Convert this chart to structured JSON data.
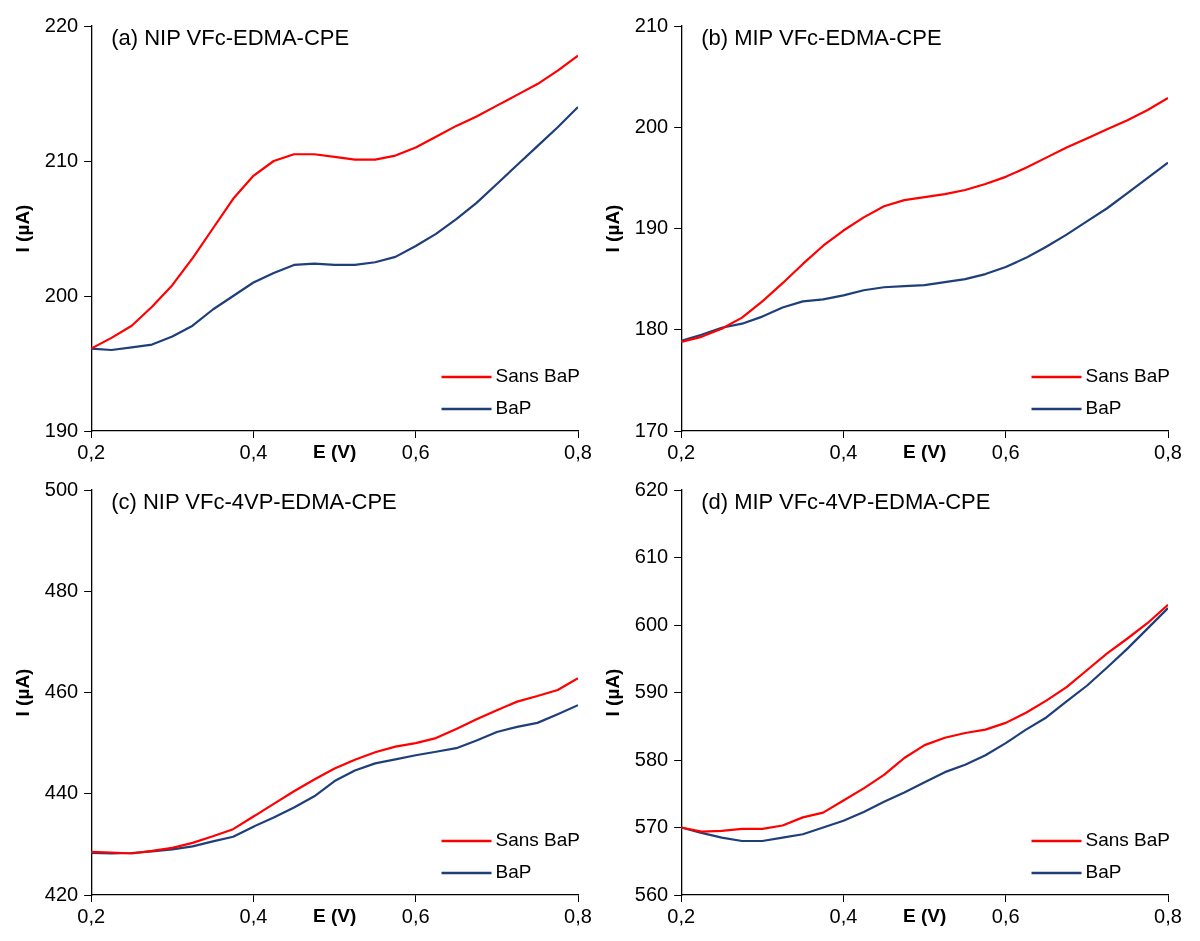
{
  "chart_data": [
    {
      "type": "line",
      "title": "(a) NIP VFc-EDMA-CPE",
      "xlabel": "E (V)",
      "ylabel": "I (µA)",
      "legend": "bottom right",
      "grid": false,
      "xlim": [
        0.2,
        0.8
      ],
      "xticks": [
        {
          "value": 0.2,
          "label": "0,2"
        },
        {
          "value": 0.4,
          "label": "0,4"
        },
        {
          "value": 0.6,
          "label": "0,6"
        },
        {
          "value": 0.8,
          "label": "0,8"
        }
      ],
      "ylim": [
        190,
        220
      ],
      "yticks": [
        190,
        200,
        210,
        220
      ],
      "x": [
        0.2,
        0.225,
        0.25,
        0.275,
        0.3,
        0.325,
        0.35,
        0.375,
        0.4,
        0.425,
        0.45,
        0.475,
        0.5,
        0.525,
        0.55,
        0.575,
        0.6,
        0.625,
        0.65,
        0.675,
        0.7,
        0.725,
        0.75,
        0.775,
        0.8
      ],
      "series": [
        {
          "name": "Sans BaP",
          "color": "#ff0000",
          "values": [
            196.1,
            196.9,
            197.8,
            199.2,
            200.8,
            202.8,
            205.0,
            207.2,
            208.9,
            210.0,
            210.5,
            210.5,
            210.3,
            210.1,
            210.1,
            210.4,
            211.0,
            211.8,
            212.6,
            213.3,
            214.1,
            214.9,
            215.7,
            216.7,
            217.8
          ]
        },
        {
          "name": "BaP",
          "color": "#1f3f7a",
          "values": [
            196.1,
            196.0,
            196.2,
            196.4,
            197.0,
            197.8,
            199.0,
            200.0,
            201.0,
            201.7,
            202.3,
            202.4,
            202.3,
            202.3,
            202.5,
            202.9,
            203.7,
            204.6,
            205.7,
            206.9,
            208.3,
            209.7,
            211.1,
            212.5,
            214.0
          ]
        }
      ]
    },
    {
      "type": "line",
      "title": "(b) MIP VFc-EDMA-CPE",
      "xlabel": "E (V)",
      "ylabel": "I (µA)",
      "legend": "bottom right",
      "grid": false,
      "xlim": [
        0.2,
        0.8
      ],
      "xticks": [
        {
          "value": 0.2,
          "label": "0,2"
        },
        {
          "value": 0.4,
          "label": "0,4"
        },
        {
          "value": 0.6,
          "label": "0,6"
        },
        {
          "value": 0.8,
          "label": "0,8"
        }
      ],
      "ylim": [
        170,
        210
      ],
      "yticks": [
        170,
        180,
        190,
        200,
        210
      ],
      "x": [
        0.2,
        0.225,
        0.25,
        0.275,
        0.3,
        0.325,
        0.35,
        0.375,
        0.4,
        0.425,
        0.45,
        0.475,
        0.5,
        0.525,
        0.55,
        0.575,
        0.6,
        0.625,
        0.65,
        0.675,
        0.7,
        0.725,
        0.75,
        0.775,
        0.8
      ],
      "series": [
        {
          "name": "Sans BaP",
          "color": "#ff0000",
          "values": [
            178.8,
            179.3,
            180.1,
            181.2,
            182.8,
            184.6,
            186.5,
            188.3,
            189.8,
            191.1,
            192.2,
            192.8,
            193.1,
            193.4,
            193.8,
            194.4,
            195.1,
            196.0,
            197.0,
            198.0,
            198.9,
            199.8,
            200.7,
            201.7,
            202.9
          ]
        },
        {
          "name": "BaP",
          "color": "#1f3f7a",
          "values": [
            178.9,
            179.5,
            180.2,
            180.6,
            181.3,
            182.2,
            182.8,
            183.0,
            183.4,
            183.9,
            184.2,
            184.3,
            184.4,
            184.7,
            185.0,
            185.5,
            186.2,
            187.1,
            188.2,
            189.4,
            190.7,
            192.0,
            193.5,
            195.0,
            196.5
          ]
        }
      ]
    },
    {
      "type": "line",
      "title": "(c) NIP VFc-4VP-EDMA-CPE",
      "xlabel": "E (V)",
      "ylabel": "I (µA)",
      "legend": "bottom right",
      "grid": false,
      "xlim": [
        0.2,
        0.8
      ],
      "xticks": [
        {
          "value": 0.2,
          "label": "0,2"
        },
        {
          "value": 0.4,
          "label": "0,4"
        },
        {
          "value": 0.6,
          "label": "0,6"
        },
        {
          "value": 0.8,
          "label": "0,8"
        }
      ],
      "ylim": [
        420,
        500
      ],
      "yticks": [
        420,
        440,
        460,
        480,
        500
      ],
      "x": [
        0.2,
        0.225,
        0.25,
        0.275,
        0.3,
        0.325,
        0.35,
        0.375,
        0.4,
        0.425,
        0.45,
        0.475,
        0.5,
        0.525,
        0.55,
        0.575,
        0.6,
        0.625,
        0.65,
        0.675,
        0.7,
        0.725,
        0.75,
        0.775,
        0.8
      ],
      "series": [
        {
          "name": "Sans BaP",
          "color": "#ff0000",
          "values": [
            428.5,
            428.4,
            428.2,
            428.7,
            429.3,
            430.3,
            431.6,
            433.0,
            435.5,
            438.0,
            440.5,
            442.8,
            445.0,
            446.7,
            448.2,
            449.3,
            450.0,
            451.0,
            452.8,
            454.7,
            456.5,
            458.2,
            459.3,
            460.5,
            462.8
          ]
        },
        {
          "name": "BaP",
          "color": "#1f3f7a",
          "values": [
            428.3,
            428.2,
            428.3,
            428.6,
            429.0,
            429.6,
            430.6,
            431.5,
            433.5,
            435.3,
            437.3,
            439.5,
            442.5,
            444.6,
            446.0,
            446.8,
            447.6,
            448.3,
            449.0,
            450.5,
            452.2,
            453.2,
            454.0,
            455.7,
            457.5
          ]
        }
      ]
    },
    {
      "type": "line",
      "title": "(d) MIP VFc-4VP-EDMA-CPE",
      "xlabel": "E (V)",
      "ylabel": "I (µA)",
      "legend": "bottom right",
      "grid": false,
      "xlim": [
        0.2,
        0.8
      ],
      "xticks": [
        {
          "value": 0.2,
          "label": "0,2"
        },
        {
          "value": 0.4,
          "label": "0,4"
        },
        {
          "value": 0.6,
          "label": "0,6"
        },
        {
          "value": 0.8,
          "label": "0,8"
        }
      ],
      "ylim": [
        560,
        620
      ],
      "yticks": [
        560,
        570,
        580,
        590,
        600,
        610,
        620
      ],
      "x": [
        0.2,
        0.225,
        0.25,
        0.275,
        0.3,
        0.325,
        0.35,
        0.375,
        0.4,
        0.425,
        0.45,
        0.475,
        0.5,
        0.525,
        0.55,
        0.575,
        0.6,
        0.625,
        0.65,
        0.675,
        0.7,
        0.725,
        0.75,
        0.775,
        0.8
      ],
      "series": [
        {
          "name": "Sans BaP",
          "color": "#ff0000",
          "values": [
            570.0,
            569.4,
            569.5,
            569.8,
            569.8,
            570.3,
            571.5,
            572.2,
            574.0,
            575.8,
            577.8,
            580.3,
            582.2,
            583.3,
            584.0,
            584.5,
            585.5,
            587.0,
            588.8,
            590.8,
            593.3,
            595.8,
            598.0,
            600.3,
            603.0
          ]
        },
        {
          "name": "BaP",
          "color": "#1f3f7a",
          "values": [
            570.0,
            569.2,
            568.5,
            568.0,
            568.0,
            568.5,
            569.0,
            570.0,
            571.0,
            572.3,
            573.8,
            575.2,
            576.7,
            578.2,
            579.3,
            580.7,
            582.5,
            584.5,
            586.3,
            588.7,
            591.0,
            593.7,
            596.5,
            599.5,
            602.5
          ]
        }
      ]
    }
  ]
}
